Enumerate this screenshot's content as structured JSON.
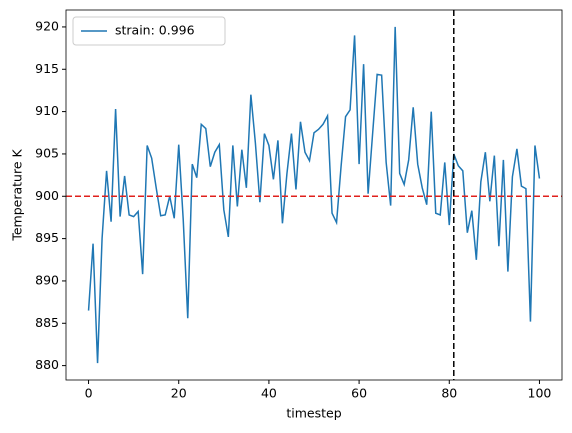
{
  "chart_data": {
    "type": "line",
    "x_label": "timestep",
    "y_label": "Temperature K",
    "x": [
      0,
      1,
      2,
      3,
      4,
      5,
      6,
      7,
      8,
      9,
      10,
      11,
      12,
      13,
      14,
      15,
      16,
      17,
      18,
      19,
      20,
      21,
      22,
      23,
      24,
      25,
      26,
      27,
      28,
      29,
      30,
      31,
      32,
      33,
      34,
      35,
      36,
      37,
      38,
      39,
      40,
      41,
      42,
      43,
      44,
      45,
      46,
      47,
      48,
      49,
      50,
      51,
      52,
      53,
      54,
      55,
      56,
      57,
      58,
      59,
      60,
      61,
      62,
      63,
      64,
      65,
      66,
      67,
      68,
      69,
      70,
      71,
      72,
      73,
      74,
      75,
      76,
      77,
      78,
      79,
      80,
      81,
      82,
      83,
      84,
      85,
      86,
      87,
      88,
      89,
      90,
      91,
      92,
      93,
      94,
      95,
      96,
      97,
      98,
      99,
      100
    ],
    "series": [
      {
        "name": "strain: 0.996",
        "color": "#1f77b4",
        "values": [
          886.5,
          894.4,
          880.3,
          895,
          903,
          897,
          910.3,
          897.6,
          902.4,
          897.8,
          897.6,
          898.2,
          890.8,
          906,
          904.5,
          901,
          897.7,
          897.8,
          900,
          897.4,
          906.1,
          897.2,
          885.6,
          903.8,
          902.2,
          908.5,
          908,
          903.5,
          905.2,
          906.1,
          898.4,
          895.2,
          906,
          898.8,
          905.5,
          901,
          912,
          906.3,
          899.3,
          907.4,
          906,
          902,
          906.6,
          896.8,
          902.7,
          907.4,
          900.8,
          908.8,
          905.2,
          904.2,
          907.5,
          907.9,
          908.5,
          909.5,
          898,
          896.9,
          903.5,
          909.4,
          910.2,
          919,
          903.8,
          915.6,
          900.3,
          907.4,
          914.4,
          914.3,
          904,
          898.9,
          920,
          902.7,
          901.4,
          904.3,
          910.5,
          903.8,
          901,
          899,
          910,
          898,
          897.8,
          904,
          896.6,
          905,
          903.6,
          903,
          895.7,
          898.3,
          892.5,
          901.7,
          905.2,
          899.4,
          904.8,
          894.1,
          904.3,
          891.1,
          902.3,
          905.6,
          901.2,
          900.9,
          885.2,
          906,
          902.1
        ]
      }
    ],
    "xlim": [
      -5,
      105
    ],
    "xticks": [
      0,
      20,
      40,
      60,
      80,
      100
    ],
    "ylim": [
      878.3,
      922.0
    ],
    "yticks": [
      880,
      885,
      890,
      895,
      900,
      905,
      910,
      915,
      920
    ],
    "hline": 900,
    "hline_color": "#e0201c",
    "vline": 81,
    "vline_color": "#000000",
    "legend_position": "upper-left"
  }
}
